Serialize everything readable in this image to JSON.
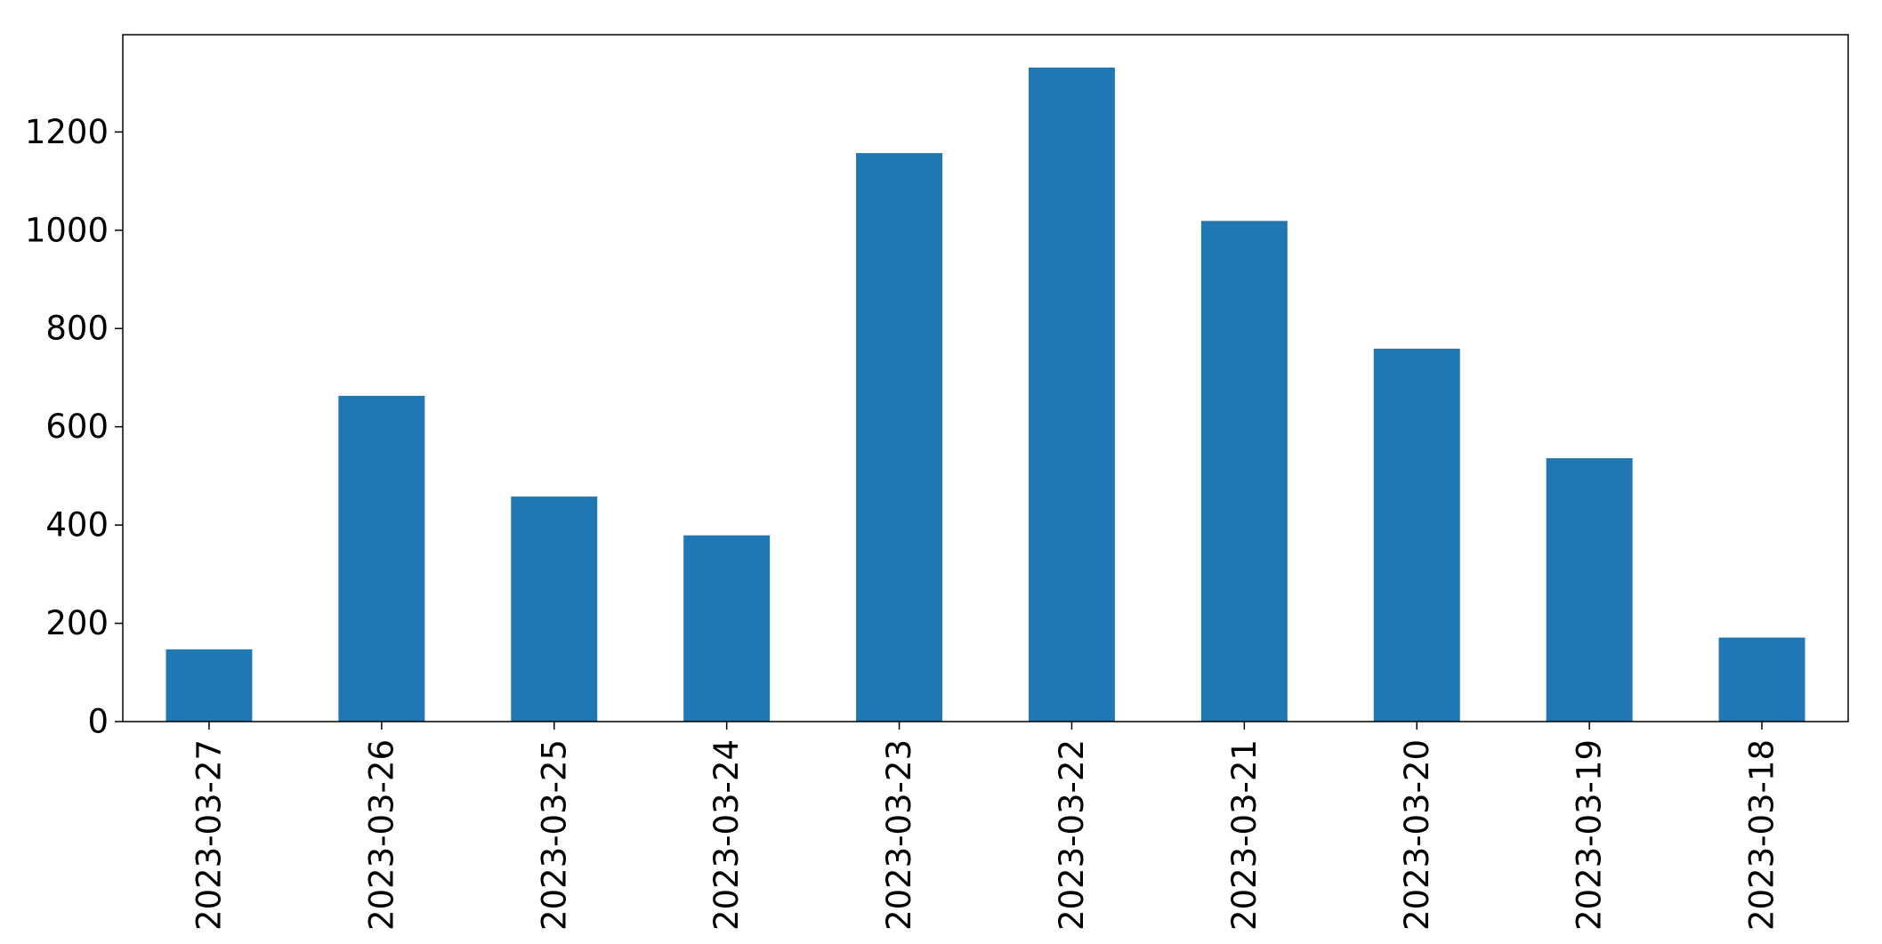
{
  "chart_data": {
    "type": "bar",
    "categories": [
      "2023-03-27",
      "2023-03-26",
      "2023-03-25",
      "2023-03-24",
      "2023-03-23",
      "2023-03-22",
      "2023-03-21",
      "2023-03-20",
      "2023-03-19",
      "2023-03-18"
    ],
    "values": [
      147,
      663,
      458,
      379,
      1157,
      1331,
      1019,
      759,
      536,
      171
    ],
    "title": "",
    "xlabel": "",
    "ylabel": "",
    "ylim": [
      0,
      1398
    ],
    "yticks": [
      0,
      200,
      400,
      600,
      800,
      1000,
      1200
    ],
    "grid": false,
    "legend": "none",
    "bar_color": "#1f77b4"
  }
}
